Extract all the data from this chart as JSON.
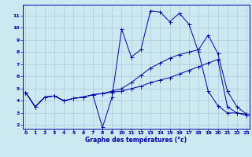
{
  "title": "Graphe des températures (°c)",
  "bg_color": "#cce8f0",
  "grid_color": "#aaccdd",
  "line_color": "#0000aa",
  "x_ticks": [
    0,
    1,
    2,
    3,
    4,
    5,
    6,
    7,
    8,
    9,
    10,
    11,
    12,
    13,
    14,
    15,
    16,
    17,
    18,
    19,
    20,
    21,
    22,
    23
  ],
  "y_ticks": [
    2,
    3,
    4,
    5,
    6,
    7,
    8,
    9,
    10,
    11
  ],
  "ylim": [
    1.7,
    11.9
  ],
  "xlim": [
    -0.3,
    23.3
  ],
  "curve1_x": [
    0,
    1,
    2,
    3,
    4,
    5,
    6,
    7,
    8,
    9,
    10,
    11,
    12,
    13,
    14,
    15,
    16,
    17,
    18,
    19,
    20,
    21,
    22,
    23
  ],
  "curve1_y": [
    4.7,
    3.5,
    4.3,
    4.4,
    4.0,
    4.2,
    4.3,
    4.5,
    1.8,
    4.3,
    9.9,
    7.6,
    8.2,
    11.4,
    11.3,
    10.5,
    11.2,
    10.3,
    8.0,
    4.8,
    3.6,
    3.0,
    3.0,
    2.8
  ],
  "curve2_x": [
    0,
    1,
    2,
    3,
    4,
    5,
    6,
    7,
    8,
    9,
    10,
    11,
    12,
    13,
    14,
    15,
    16,
    17,
    18,
    19,
    20,
    21,
    22,
    23
  ],
  "curve2_y": [
    4.7,
    3.5,
    4.3,
    4.4,
    4.0,
    4.2,
    4.3,
    4.5,
    4.6,
    4.8,
    5.0,
    5.5,
    6.1,
    6.7,
    7.1,
    7.5,
    7.8,
    8.0,
    8.2,
    9.4,
    7.9,
    4.8,
    3.5,
    2.9
  ],
  "curve3_x": [
    0,
    1,
    2,
    3,
    4,
    5,
    6,
    7,
    8,
    9,
    10,
    11,
    12,
    13,
    14,
    15,
    16,
    17,
    18,
    19,
    20,
    21,
    22,
    23
  ],
  "curve3_y": [
    4.7,
    3.5,
    4.3,
    4.4,
    4.0,
    4.2,
    4.3,
    4.5,
    4.6,
    4.7,
    4.8,
    5.0,
    5.2,
    5.5,
    5.7,
    5.9,
    6.2,
    6.5,
    6.8,
    7.1,
    7.4,
    3.5,
    3.0,
    2.9
  ]
}
